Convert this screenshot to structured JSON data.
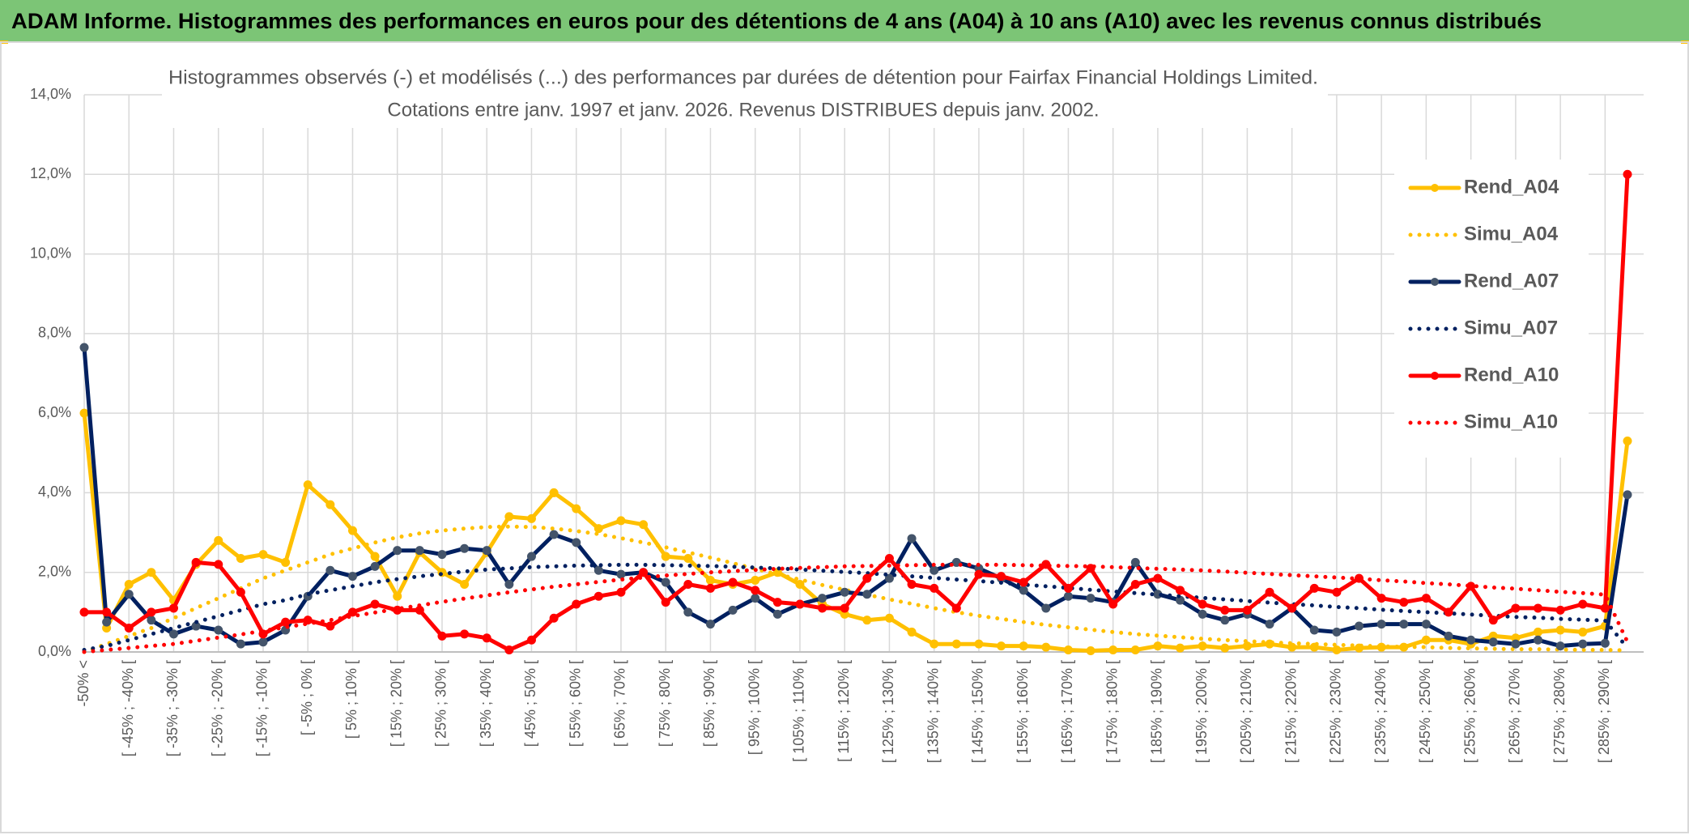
{
  "page_title": "ADAM Informe. Histogrammes des performances en euros pour des détentions de 4 ans (A04) à 10 ans (A10) avec les revenus connus distribués",
  "chart_data": {
    "type": "line",
    "title": "Histogrammes observés (-) et modélisés (...) des performances par durées de détention pour Fairfax Financial Holdings Limited.",
    "subtitle": "Cotations entre janv. 1997 et janv. 2026. Revenus DISTRIBUES depuis janv. 2002.",
    "categories": [
      "-50% <",
      null,
      "[ -45% ; -40% [",
      null,
      "[ -35% ; -30% [",
      null,
      "[ -25% ; -20% [",
      null,
      "[ -15% ; -10% [",
      null,
      "[ -5% ; 0% [",
      null,
      "[ 5% ; 10% [",
      null,
      "[ 15% ; 20% [",
      null,
      "[ 25% ; 30% [",
      null,
      "[ 35% ; 40% [",
      null,
      "[ 45% ; 50% [",
      null,
      "[ 55% ; 60% [",
      null,
      "[ 65% ; 70% [",
      null,
      "[ 75% ; 80% [",
      null,
      "[ 85% ; 90% [",
      null,
      "[ 95% ; 100% [",
      null,
      "[ 105% ; 110% [",
      null,
      "[ 115% ; 120% [",
      null,
      "[ 125% ; 130% [",
      null,
      "[ 135% ; 140% [",
      null,
      "[ 145% ; 150% [",
      null,
      "[ 155% ; 160% [",
      null,
      "[ 165% ; 170% [",
      null,
      "[ 175% ; 180% [",
      null,
      "[ 185% ; 190% [",
      null,
      "[ 195% ; 200% [",
      null,
      "[ 205% ; 210% [",
      null,
      "[ 215% ; 220% [",
      null,
      "[ 225% ; 230% [",
      null,
      "[ 235% ; 240% [",
      null,
      "[ 245% ; 250% [",
      null,
      "[ 255% ; 260% [",
      null,
      "[ 265% ; 270% [",
      null,
      "[ 275% ; 280% [",
      null,
      "[ 285% ; 290% [",
      null
    ],
    "ylim": [
      0,
      14
    ],
    "yticks": [
      {
        "value": 0,
        "label": "0,0%"
      },
      {
        "value": 2,
        "label": "2,0%"
      },
      {
        "value": 4,
        "label": "4,0%"
      },
      {
        "value": 6,
        "label": "6,0%"
      },
      {
        "value": 8,
        "label": "8,0%"
      },
      {
        "value": 10,
        "label": "10,0%"
      },
      {
        "value": 12,
        "label": "12,0%"
      },
      {
        "value": 14,
        "label": "14,0%"
      }
    ],
    "grid": true,
    "legend": "right",
    "series": [
      {
        "name": "Rend_A04",
        "color": "#ffc000",
        "line_style": "solid",
        "marker": true,
        "values": [
          6.0,
          0.6,
          1.7,
          2.0,
          1.3,
          2.2,
          2.8,
          2.35,
          2.45,
          2.25,
          4.2,
          3.7,
          3.05,
          2.4,
          1.4,
          2.5,
          2.0,
          1.7,
          2.5,
          3.4,
          3.35,
          4.0,
          3.6,
          3.1,
          3.3,
          3.2,
          2.4,
          2.35,
          1.8,
          1.7,
          1.8,
          2.0,
          1.7,
          1.2,
          0.95,
          0.8,
          0.85,
          0.5,
          0.2,
          0.2,
          0.2,
          0.15,
          0.15,
          0.12,
          0.05,
          0.03,
          0.05,
          0.05,
          0.15,
          0.1,
          0.15,
          0.1,
          0.15,
          0.2,
          0.12,
          0.12,
          0.05,
          0.1,
          0.12,
          0.12,
          0.3,
          0.3,
          0.2,
          0.4,
          0.35,
          0.5,
          0.55,
          0.5,
          0.65,
          5.3
        ]
      },
      {
        "name": "Simu_A04",
        "color": "#ffc000",
        "line_style": "dotted",
        "marker": false,
        "values": [
          0.0,
          0.2,
          0.4,
          0.6,
          0.85,
          1.1,
          1.35,
          1.6,
          1.85,
          2.05,
          2.25,
          2.45,
          2.6,
          2.75,
          2.88,
          2.98,
          3.05,
          3.1,
          3.14,
          3.15,
          3.14,
          3.1,
          3.04,
          2.96,
          2.86,
          2.75,
          2.63,
          2.5,
          2.37,
          2.23,
          2.09,
          1.95,
          1.82,
          1.68,
          1.56,
          1.44,
          1.32,
          1.21,
          1.1,
          1.0,
          0.91,
          0.83,
          0.75,
          0.68,
          0.62,
          0.56,
          0.5,
          0.45,
          0.41,
          0.37,
          0.33,
          0.3,
          0.27,
          0.24,
          0.22,
          0.2,
          0.18,
          0.16,
          0.14,
          0.13,
          0.12,
          0.1,
          0.09,
          0.08,
          0.07,
          0.07,
          0.06,
          0.05,
          0.05,
          0.04
        ]
      },
      {
        "name": "Rend_A07",
        "color": "#002060",
        "marker_color": "#44546a",
        "line_style": "solid",
        "marker": true,
        "values": [
          7.65,
          0.75,
          1.45,
          0.8,
          0.45,
          0.65,
          0.55,
          0.2,
          0.25,
          0.55,
          1.4,
          2.05,
          1.9,
          2.15,
          2.55,
          2.55,
          2.45,
          2.6,
          2.55,
          1.7,
          2.4,
          2.95,
          2.75,
          2.05,
          1.95,
          2.0,
          1.75,
          1.0,
          0.7,
          1.05,
          1.35,
          0.95,
          1.2,
          1.35,
          1.5,
          1.45,
          1.85,
          2.85,
          2.05,
          2.25,
          2.1,
          1.85,
          1.55,
          1.1,
          1.4,
          1.35,
          1.25,
          2.25,
          1.45,
          1.3,
          0.95,
          0.8,
          0.95,
          0.7,
          1.1,
          0.55,
          0.5,
          0.65,
          0.7,
          0.7,
          0.7,
          0.4,
          0.3,
          0.25,
          0.2,
          0.3,
          0.15,
          0.2,
          0.22,
          3.95
        ]
      },
      {
        "name": "Simu_A07",
        "color": "#002060",
        "line_style": "dotted",
        "marker": false,
        "values": [
          0.05,
          0.15,
          0.3,
          0.45,
          0.6,
          0.75,
          0.9,
          1.05,
          1.2,
          1.3,
          1.45,
          1.55,
          1.65,
          1.75,
          1.83,
          1.9,
          1.96,
          2.02,
          2.07,
          2.1,
          2.13,
          2.15,
          2.17,
          2.18,
          2.19,
          2.19,
          2.18,
          2.17,
          2.16,
          2.14,
          2.12,
          2.1,
          2.07,
          2.04,
          2.01,
          1.98,
          1.94,
          1.9,
          1.86,
          1.82,
          1.78,
          1.74,
          1.69,
          1.65,
          1.61,
          1.56,
          1.52,
          1.48,
          1.44,
          1.4,
          1.36,
          1.32,
          1.28,
          1.24,
          1.2,
          1.17,
          1.13,
          1.1,
          1.06,
          1.03,
          1.0,
          0.97,
          0.94,
          0.91,
          0.88,
          0.86,
          0.83,
          0.81,
          0.79,
          0.1
        ]
      },
      {
        "name": "Rend_A10",
        "color": "#ff0000",
        "line_style": "solid",
        "marker": true,
        "values": [
          1.0,
          1.0,
          0.6,
          1.0,
          1.1,
          2.25,
          2.2,
          1.5,
          0.45,
          0.75,
          0.8,
          0.65,
          1.0,
          1.2,
          1.05,
          1.05,
          0.4,
          0.45,
          0.35,
          0.05,
          0.3,
          0.85,
          1.2,
          1.4,
          1.5,
          2.0,
          1.25,
          1.7,
          1.6,
          1.75,
          1.55,
          1.25,
          1.2,
          1.1,
          1.1,
          1.85,
          2.35,
          1.7,
          1.6,
          1.1,
          1.95,
          1.9,
          1.75,
          2.2,
          1.6,
          2.1,
          1.2,
          1.7,
          1.85,
          1.55,
          1.2,
          1.05,
          1.05,
          1.5,
          1.1,
          1.6,
          1.5,
          1.85,
          1.35,
          1.25,
          1.35,
          1.0,
          1.65,
          0.8,
          1.1,
          1.1,
          1.05,
          1.2,
          1.1,
          12.0
        ]
      },
      {
        "name": "Simu_A10",
        "color": "#ff0000",
        "line_style": "dotted",
        "marker": false,
        "values": [
          0.0,
          0.05,
          0.1,
          0.15,
          0.2,
          0.28,
          0.36,
          0.44,
          0.53,
          0.62,
          0.71,
          0.8,
          0.9,
          0.99,
          1.08,
          1.17,
          1.26,
          1.34,
          1.42,
          1.5,
          1.57,
          1.64,
          1.7,
          1.76,
          1.82,
          1.87,
          1.92,
          1.96,
          2.0,
          2.03,
          2.06,
          2.09,
          2.11,
          2.13,
          2.15,
          2.16,
          2.17,
          2.18,
          2.19,
          2.19,
          2.19,
          2.19,
          2.18,
          2.17,
          2.16,
          2.15,
          2.13,
          2.11,
          2.09,
          2.07,
          2.05,
          2.02,
          1.99,
          1.96,
          1.93,
          1.9,
          1.87,
          1.84,
          1.8,
          1.77,
          1.73,
          1.7,
          1.66,
          1.62,
          1.59,
          1.55,
          1.51,
          1.48,
          1.44,
          0.25
        ]
      }
    ]
  }
}
